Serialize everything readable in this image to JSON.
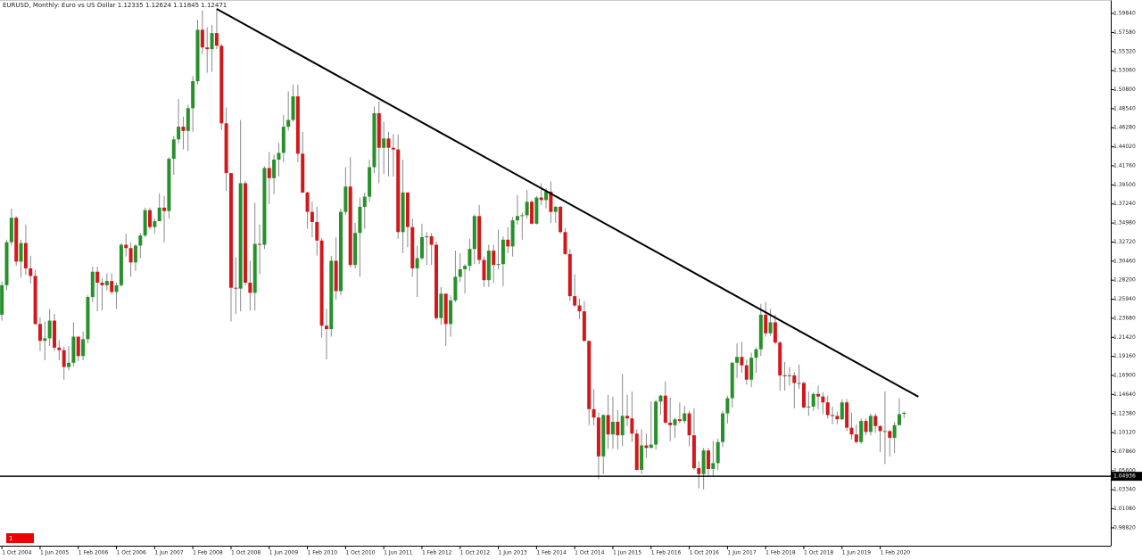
{
  "chart_data": {
    "type": "candlestick",
    "title": "EURUSD, Monthly:  Euro vs US Dollar  1.12335 1.12624 1.11845 1.12471",
    "badge": "1",
    "up_color": "#26912b",
    "down_color": "#d3181b",
    "wick_color": "#8a8a8a",
    "grid": false,
    "xlim": [
      -0.4,
      232.3
    ],
    "ylim": [
      0.967,
      1.6143
    ],
    "yticks": [
      {
        "value": 1.5984,
        "label": "1.59840"
      },
      {
        "value": 1.5758,
        "label": "1.57580"
      },
      {
        "value": 1.5532,
        "label": "1.55320"
      },
      {
        "value": 1.5306,
        "label": "1.53060"
      },
      {
        "value": 1.508,
        "label": "1.50800"
      },
      {
        "value": 1.4854,
        "label": "1.48540"
      },
      {
        "value": 1.4628,
        "label": "1.46280"
      },
      {
        "value": 1.4402,
        "label": "1.44020"
      },
      {
        "value": 1.4176,
        "label": "1.41760"
      },
      {
        "value": 1.395,
        "label": "1.39500"
      },
      {
        "value": 1.3724,
        "label": "1.37240"
      },
      {
        "value": 1.3498,
        "label": "1.34980"
      },
      {
        "value": 1.3272,
        "label": "1.32720"
      },
      {
        "value": 1.3046,
        "label": "1.30460"
      },
      {
        "value": 1.282,
        "label": "1.28200"
      },
      {
        "value": 1.2594,
        "label": "1.25940"
      },
      {
        "value": 1.2368,
        "label": "1.23680"
      },
      {
        "value": 1.2142,
        "label": "1.21420"
      },
      {
        "value": 1.1916,
        "label": "1.19160"
      },
      {
        "value": 1.169,
        "label": "1.16900"
      },
      {
        "value": 1.1464,
        "label": "1.14640"
      },
      {
        "value": 1.1238,
        "label": "1.12380"
      },
      {
        "value": 1.1012,
        "label": "1.10120"
      },
      {
        "value": 1.0786,
        "label": "1.07860"
      },
      {
        "value": 1.056,
        "label": "1.05600"
      },
      {
        "value": 1.0334,
        "label": "1.03340"
      },
      {
        "value": 1.0108,
        "label": "1.01080"
      },
      {
        "value": 0.9882,
        "label": "0.98820"
      }
    ],
    "hline": 1.04936,
    "trend_line": {
      "x": [
        45,
        192
      ],
      "y": [
        1.6037,
        1.1437
      ]
    },
    "categories": [
      "1 Oct 2004",
      null,
      null,
      null,
      null,
      null,
      null,
      null,
      "1 Jun 2005",
      null,
      null,
      null,
      null,
      null,
      null,
      null,
      "1 Feb 2006",
      null,
      null,
      null,
      null,
      null,
      null,
      null,
      "1 Oct 2006",
      null,
      null,
      null,
      null,
      null,
      null,
      null,
      "1 Jun 2007",
      null,
      null,
      null,
      null,
      null,
      null,
      null,
      "1 Feb 2008",
      null,
      null,
      null,
      null,
      null,
      null,
      null,
      "1 Oct 2008",
      null,
      null,
      null,
      null,
      null,
      null,
      null,
      "1 Jun 2009",
      null,
      null,
      null,
      null,
      null,
      null,
      null,
      "1 Feb 2010",
      null,
      null,
      null,
      null,
      null,
      null,
      null,
      "1 Oct 2010",
      null,
      null,
      null,
      null,
      null,
      null,
      null,
      "1 Jun 2011",
      null,
      null,
      null,
      null,
      null,
      null,
      null,
      "1 Feb 2012",
      null,
      null,
      null,
      null,
      null,
      null,
      null,
      "1 Oct 2012",
      null,
      null,
      null,
      null,
      null,
      null,
      null,
      "1 Jun 2013",
      null,
      null,
      null,
      null,
      null,
      null,
      null,
      "1 Feb 2014",
      null,
      null,
      null,
      null,
      null,
      null,
      null,
      "1 Oct 2014",
      null,
      null,
      null,
      null,
      null,
      null,
      null,
      "1 Jun 2015",
      null,
      null,
      null,
      null,
      null,
      null,
      null,
      "1 Feb 2016",
      null,
      null,
      null,
      null,
      null,
      null,
      null,
      "1 Oct 2016",
      null,
      null,
      null,
      null,
      null,
      null,
      null,
      "1 Jun 2017",
      null,
      null,
      null,
      null,
      null,
      null,
      null,
      "1 Feb 2018",
      null,
      null,
      null,
      null,
      null,
      null,
      null,
      "1 Oct 2018",
      null,
      null,
      null,
      null,
      null,
      null,
      null,
      "1 Jun 2019",
      null,
      null,
      null,
      null,
      null,
      null,
      null,
      "1 Feb 2020",
      null,
      null,
      null,
      null,
      null
    ],
    "open": [
      1.241,
      1.276,
      1.327,
      1.356,
      1.304,
      1.326,
      1.296,
      1.287,
      1.23,
      1.21,
      1.213,
      1.234,
      1.202,
      1.199,
      1.179,
      1.184,
      1.215,
      1.192,
      1.212,
      1.262,
      1.292,
      1.279,
      1.276,
      1.281,
      1.268,
      1.276,
      1.324,
      1.32,
      1.303,
      1.323,
      1.335,
      1.365,
      1.345,
      1.352,
      1.368,
      1.364,
      1.426,
      1.449,
      1.464,
      1.459,
      1.486,
      1.518,
      1.579,
      1.558,
      1.556,
      1.575,
      1.56,
      1.468,
      1.409,
      1.273,
      1.272,
      1.397,
      1.279,
      1.267,
      1.325,
      1.324,
      1.415,
      1.403,
      1.425,
      1.433,
      1.464,
      1.472,
      1.5,
      1.432,
      1.386,
      1.363,
      1.351,
      1.329,
      1.228,
      1.224,
      1.305,
      1.269,
      1.363,
      1.393,
      1.3,
      1.338,
      1.369,
      1.381,
      1.416,
      1.48,
      1.439,
      1.45,
      1.439,
      1.437,
      1.339,
      1.386,
      1.345,
      1.296,
      1.308,
      1.333,
      1.334,
      1.324,
      1.237,
      1.266,
      1.23,
      1.258,
      1.286,
      1.295,
      1.299,
      1.319,
      1.358,
      1.306,
      1.282,
      1.317,
      1.3,
      1.301,
      1.33,
      1.322,
      1.353,
      1.358,
      1.359,
      1.375,
      1.349,
      1.38,
      1.377,
      1.387,
      1.363,
      1.369,
      1.339,
      1.313,
      1.263,
      1.252,
      1.245,
      1.21,
      1.129,
      1.119,
      1.073,
      1.122,
      1.099,
      1.114,
      1.098,
      1.121,
      1.118,
      1.1,
      1.057,
      1.086,
      1.083,
      1.087,
      1.138,
      1.145,
      1.113,
      1.11,
      1.117,
      1.115,
      1.124,
      1.098,
      1.059,
      1.052,
      1.08,
      1.058,
      1.065,
      1.09,
      1.124,
      1.142,
      1.184,
      1.191,
      1.181,
      1.164,
      1.19,
      1.2,
      1.241,
      1.219,
      1.232,
      1.208,
      1.169,
      1.168,
      1.169,
      1.16,
      1.16,
      1.131,
      1.132,
      1.147,
      1.144,
      1.137,
      1.122,
      1.121,
      1.117,
      1.137,
      1.107,
      1.099,
      1.09,
      1.115,
      1.102,
      1.121,
      1.109,
      1.103,
      1.103,
      1.095,
      1.11,
      1.12335
    ],
    "high": [
      1.28,
      1.33,
      1.367,
      1.358,
      1.33,
      1.348,
      1.311,
      1.294,
      1.238,
      1.233,
      1.248,
      1.242,
      1.211,
      1.203,
      1.204,
      1.232,
      1.215,
      1.221,
      1.264,
      1.298,
      1.298,
      1.284,
      1.29,
      1.29,
      1.279,
      1.326,
      1.337,
      1.327,
      1.325,
      1.338,
      1.368,
      1.368,
      1.355,
      1.385,
      1.382,
      1.428,
      1.453,
      1.497,
      1.476,
      1.49,
      1.524,
      1.591,
      1.602,
      1.582,
      1.585,
      1.604,
      1.562,
      1.487,
      1.409,
      1.309,
      1.472,
      1.4,
      1.305,
      1.374,
      1.348,
      1.417,
      1.434,
      1.431,
      1.445,
      1.478,
      1.506,
      1.514,
      1.514,
      1.458,
      1.387,
      1.375,
      1.369,
      1.332,
      1.248,
      1.311,
      1.333,
      1.367,
      1.416,
      1.428,
      1.35,
      1.38,
      1.386,
      1.425,
      1.488,
      1.494,
      1.47,
      1.458,
      1.455,
      1.455,
      1.425,
      1.386,
      1.355,
      1.323,
      1.349,
      1.339,
      1.338,
      1.328,
      1.274,
      1.266,
      1.264,
      1.317,
      1.314,
      1.301,
      1.331,
      1.36,
      1.371,
      1.31,
      1.324,
      1.324,
      1.342,
      1.334,
      1.345,
      1.357,
      1.383,
      1.362,
      1.389,
      1.377,
      1.382,
      1.397,
      1.391,
      1.399,
      1.37,
      1.37,
      1.344,
      1.319,
      1.289,
      1.26,
      1.257,
      1.21,
      1.153,
      1.125,
      1.123,
      1.146,
      1.144,
      1.128,
      1.171,
      1.146,
      1.15,
      1.105,
      1.105,
      1.1,
      1.138,
      1.14,
      1.146,
      1.162,
      1.143,
      1.119,
      1.137,
      1.133,
      1.127,
      1.13,
      1.067,
      1.083,
      1.083,
      1.091,
      1.094,
      1.127,
      1.145,
      1.185,
      1.207,
      1.209,
      1.188,
      1.196,
      1.202,
      1.254,
      1.256,
      1.248,
      1.241,
      1.21,
      1.185,
      1.179,
      1.173,
      1.182,
      1.162,
      1.15,
      1.149,
      1.157,
      1.149,
      1.145,
      1.132,
      1.126,
      1.141,
      1.141,
      1.125,
      1.111,
      1.118,
      1.118,
      1.124,
      1.124,
      1.11,
      1.15,
      1.104,
      1.114,
      1.142,
      1.12624
    ],
    "low": [
      1.234,
      1.27,
      1.323,
      1.299,
      1.285,
      1.288,
      1.278,
      1.229,
      1.198,
      1.187,
      1.204,
      1.198,
      1.187,
      1.164,
      1.175,
      1.18,
      1.186,
      1.187,
      1.207,
      1.256,
      1.245,
      1.246,
      1.27,
      1.265,
      1.248,
      1.274,
      1.31,
      1.286,
      1.293,
      1.308,
      1.333,
      1.342,
      1.337,
      1.352,
      1.327,
      1.355,
      1.407,
      1.444,
      1.437,
      1.435,
      1.458,
      1.514,
      1.55,
      1.528,
      1.529,
      1.556,
      1.46,
      1.388,
      1.233,
      1.242,
      1.245,
      1.276,
      1.246,
      1.246,
      1.289,
      1.319,
      1.372,
      1.384,
      1.405,
      1.422,
      1.459,
      1.47,
      1.422,
      1.385,
      1.343,
      1.333,
      1.311,
      1.214,
      1.188,
      1.215,
      1.259,
      1.264,
      1.359,
      1.297,
      1.296,
      1.286,
      1.343,
      1.375,
      1.409,
      1.397,
      1.408,
      1.405,
      1.405,
      1.331,
      1.314,
      1.321,
      1.286,
      1.262,
      1.306,
      1.3,
      1.3,
      1.235,
      1.229,
      1.204,
      1.215,
      1.256,
      1.28,
      1.266,
      1.293,
      1.301,
      1.301,
      1.274,
      1.274,
      1.279,
      1.295,
      1.275,
      1.314,
      1.31,
      1.348,
      1.33,
      1.355,
      1.348,
      1.348,
      1.371,
      1.367,
      1.35,
      1.35,
      1.337,
      1.312,
      1.257,
      1.25,
      1.236,
      1.209,
      1.11,
      1.11,
      1.046,
      1.052,
      1.082,
      1.082,
      1.081,
      1.085,
      1.109,
      1.09,
      1.056,
      1.052,
      1.071,
      1.083,
      1.081,
      1.122,
      1.111,
      1.091,
      1.095,
      1.112,
      1.112,
      1.085,
      1.057,
      1.035,
      1.034,
      1.049,
      1.049,
      1.057,
      1.084,
      1.112,
      1.131,
      1.166,
      1.172,
      1.158,
      1.155,
      1.172,
      1.192,
      1.215,
      1.216,
      1.206,
      1.151,
      1.151,
      1.157,
      1.13,
      1.153,
      1.13,
      1.121,
      1.127,
      1.129,
      1.123,
      1.118,
      1.111,
      1.111,
      1.116,
      1.103,
      1.093,
      1.088,
      1.088,
      1.098,
      1.098,
      1.101,
      1.078,
      1.064,
      1.073,
      1.077,
      1.11,
      1.11845
    ],
    "close": [
      1.276,
      1.327,
      1.356,
      1.304,
      1.326,
      1.296,
      1.287,
      1.23,
      1.21,
      1.213,
      1.234,
      1.202,
      1.199,
      1.179,
      1.184,
      1.215,
      1.192,
      1.212,
      1.262,
      1.292,
      1.279,
      1.276,
      1.281,
      1.268,
      1.276,
      1.324,
      1.32,
      1.303,
      1.323,
      1.335,
      1.365,
      1.345,
      1.352,
      1.368,
      1.364,
      1.426,
      1.449,
      1.464,
      1.459,
      1.486,
      1.518,
      1.579,
      1.558,
      1.556,
      1.575,
      1.56,
      1.468,
      1.409,
      1.273,
      1.272,
      1.397,
      1.279,
      1.267,
      1.325,
      1.324,
      1.415,
      1.403,
      1.425,
      1.433,
      1.464,
      1.472,
      1.5,
      1.432,
      1.386,
      1.363,
      1.351,
      1.329,
      1.228,
      1.224,
      1.305,
      1.269,
      1.363,
      1.393,
      1.3,
      1.338,
      1.369,
      1.381,
      1.416,
      1.48,
      1.439,
      1.45,
      1.439,
      1.437,
      1.339,
      1.386,
      1.345,
      1.296,
      1.308,
      1.333,
      1.334,
      1.324,
      1.237,
      1.266,
      1.23,
      1.258,
      1.286,
      1.295,
      1.299,
      1.319,
      1.358,
      1.306,
      1.282,
      1.317,
      1.3,
      1.301,
      1.33,
      1.322,
      1.353,
      1.358,
      1.359,
      1.375,
      1.349,
      1.38,
      1.377,
      1.387,
      1.363,
      1.369,
      1.339,
      1.313,
      1.263,
      1.252,
      1.245,
      1.21,
      1.129,
      1.119,
      1.073,
      1.122,
      1.099,
      1.114,
      1.098,
      1.121,
      1.118,
      1.1,
      1.057,
      1.086,
      1.083,
      1.087,
      1.138,
      1.145,
      1.113,
      1.11,
      1.117,
      1.115,
      1.124,
      1.098,
      1.059,
      1.052,
      1.08,
      1.058,
      1.065,
      1.09,
      1.124,
      1.142,
      1.184,
      1.191,
      1.181,
      1.164,
      1.19,
      1.2,
      1.241,
      1.219,
      1.232,
      1.208,
      1.169,
      1.168,
      1.169,
      1.16,
      1.16,
      1.131,
      1.132,
      1.147,
      1.144,
      1.137,
      1.122,
      1.121,
      1.117,
      1.137,
      1.107,
      1.099,
      1.09,
      1.115,
      1.102,
      1.121,
      1.109,
      1.103,
      1.103,
      1.095,
      1.11,
      1.123,
      1.12471
    ]
  }
}
